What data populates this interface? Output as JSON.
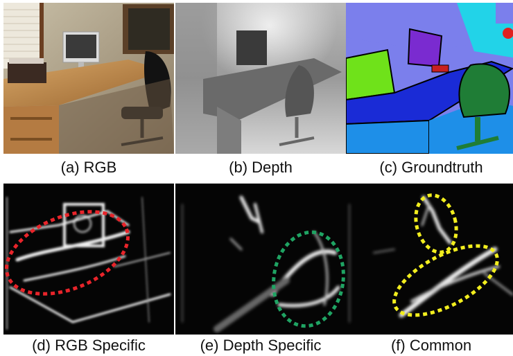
{
  "panels": [
    {
      "id": "a",
      "caption": "(a) RGB"
    },
    {
      "id": "b",
      "caption": "(b) Depth"
    },
    {
      "id": "c",
      "caption": "(c) Groundtruth"
    },
    {
      "id": "d",
      "caption": "(d) RGB Specific"
    },
    {
      "id": "e",
      "caption": "(e) Depth Specific"
    },
    {
      "id": "f",
      "caption": "(f) Common"
    }
  ],
  "colors": {
    "highlight_red": "#e8242a",
    "highlight_green": "#1fa463",
    "highlight_yellow": "#f2ee1e",
    "seg_wall": "#7b7fec",
    "seg_wall_cyan": "#22d3e8",
    "seg_desk": "#1a2bd6",
    "seg_cabinet": "#1e8fe8",
    "seg_chair": "#1f7d36",
    "seg_box": "#6fe21a",
    "seg_monitor": "#7a2bd0"
  }
}
